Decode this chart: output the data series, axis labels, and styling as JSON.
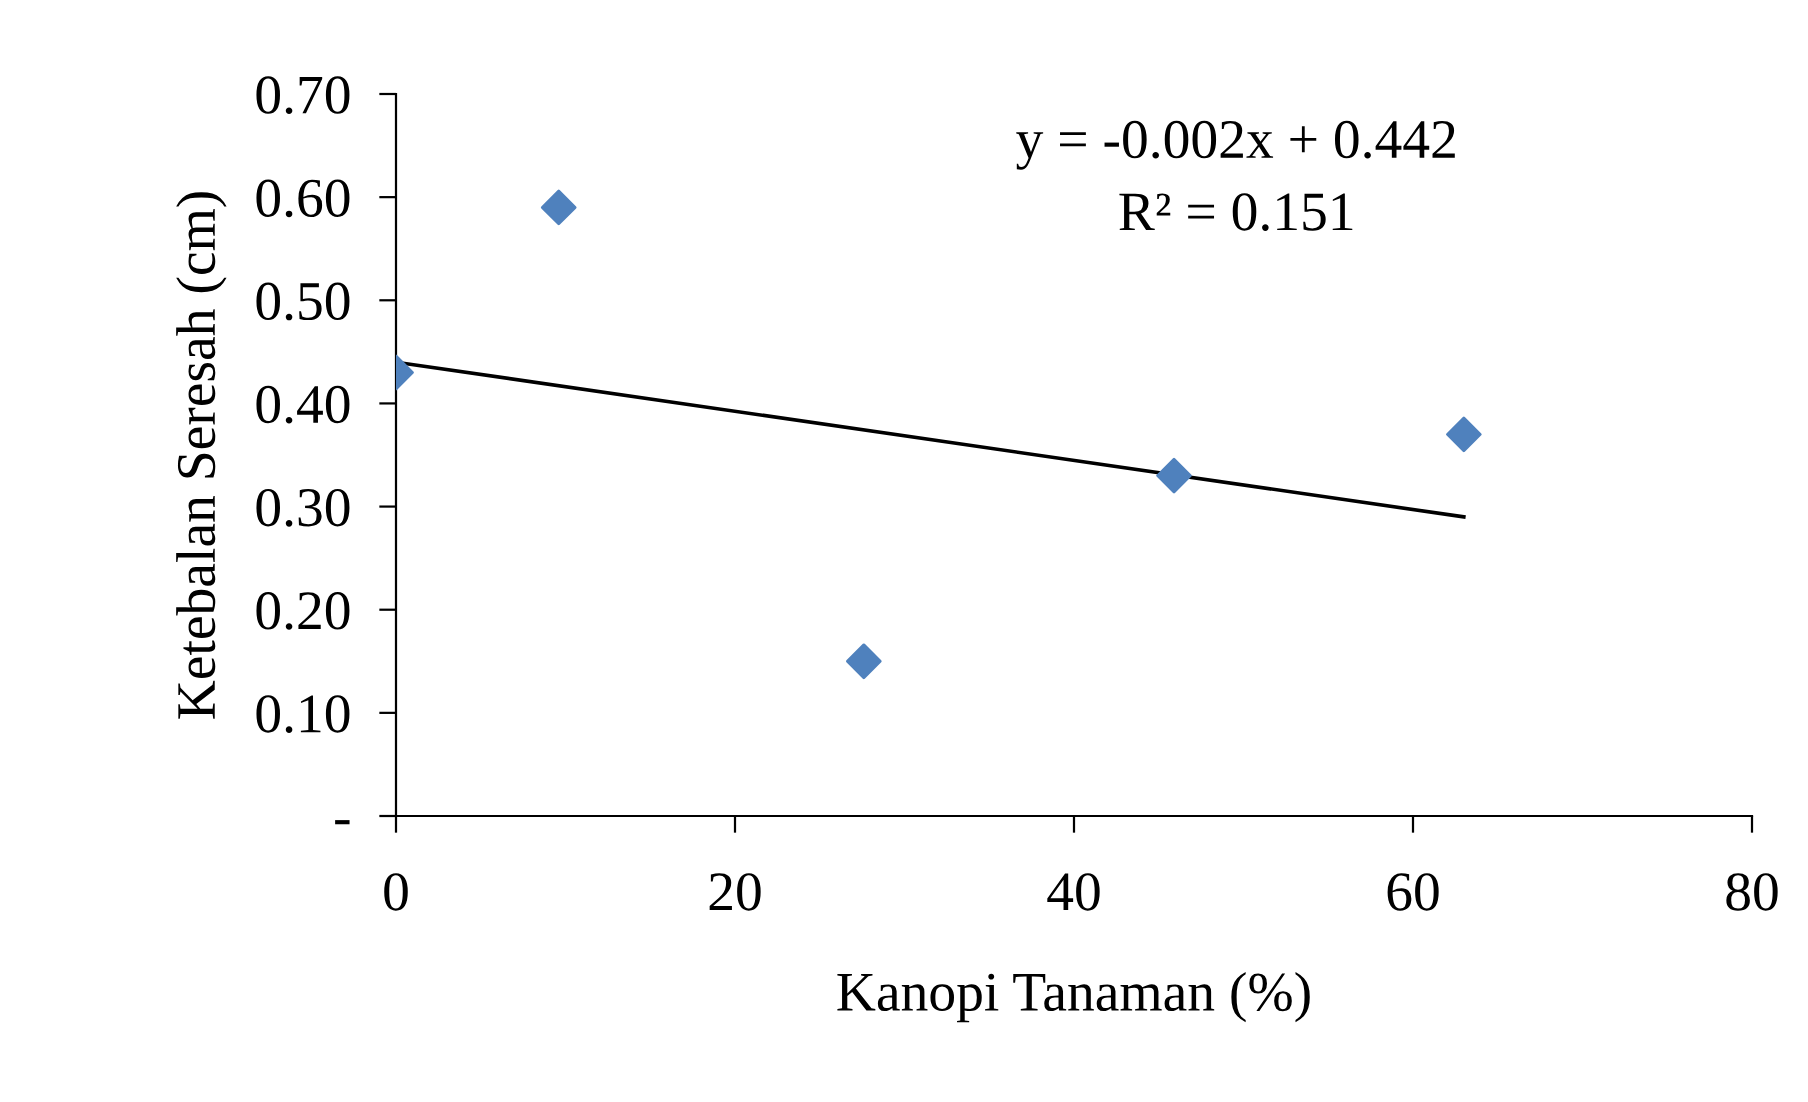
{
  "chart_data": {
    "type": "scatter",
    "xlabel": "Kanopi Tanaman (%)",
    "ylabel": "Ketebalan Seresah (cm)",
    "annotations": [
      "y = -0.002x + 0.442",
      "R² = 0.151"
    ],
    "xlim": [
      0,
      80
    ],
    "xticks": [
      0,
      20,
      40,
      60,
      80
    ],
    "ylim": [
      0,
      0.7
    ],
    "yticks": [
      {
        "value": 0,
        "label": "-"
      },
      {
        "value": 0.1,
        "label": "0.10"
      },
      {
        "value": 0.2,
        "label": "0.20"
      },
      {
        "value": 0.3,
        "label": "0.30"
      },
      {
        "value": 0.4,
        "label": "0.40"
      },
      {
        "value": 0.5,
        "label": "0.50"
      },
      {
        "value": 0.6,
        "label": "0.60"
      },
      {
        "value": 0.7,
        "label": "0.70"
      }
    ],
    "grid": false,
    "legend": false,
    "series": [
      {
        "color": "#4f81bd",
        "marker": "diamond",
        "x": [
          0,
          9.6,
          27.6,
          45.9,
          63.0
        ],
        "values": [
          0.43,
          0.59,
          0.15,
          0.33,
          0.37
        ]
      },
      {
        "type": "line",
        "color": "#000000",
        "marker": "none",
        "line_style": "solid",
        "x": [
          0,
          63.0
        ],
        "values": [
          0.44,
          0.29
        ]
      }
    ]
  }
}
